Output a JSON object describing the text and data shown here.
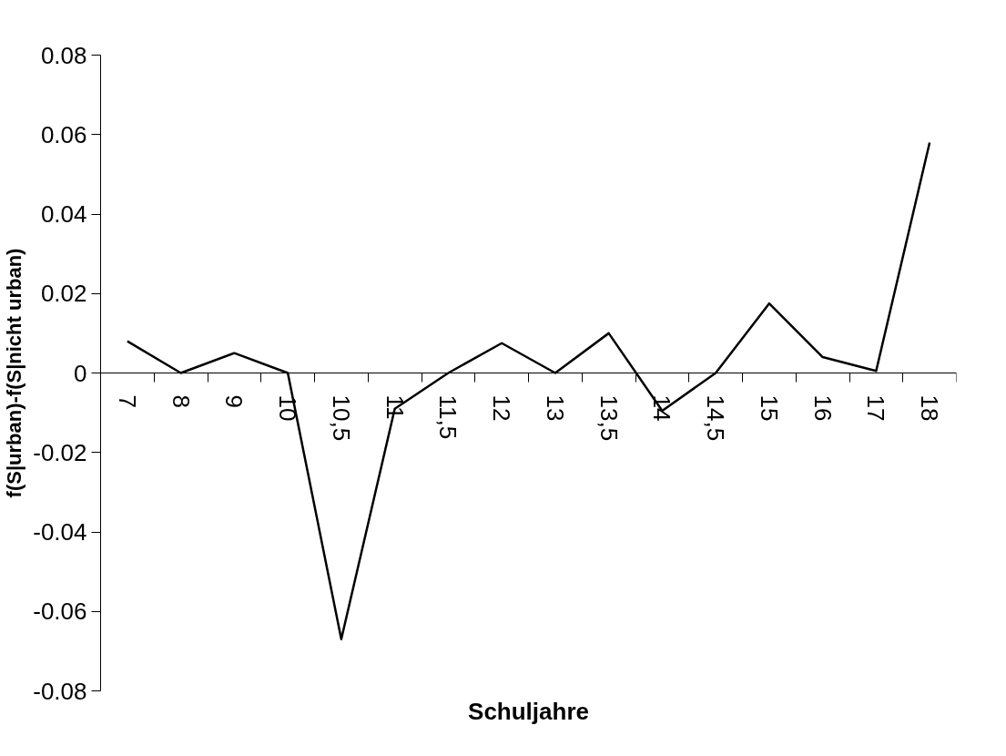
{
  "chart_data": {
    "type": "line",
    "xlabel": "Schuljahre",
    "ylabel": "f(S|urban)-f(S|nicht urban)",
    "categories": [
      "7",
      "8",
      "9",
      "10",
      "10,5",
      "11",
      "11,5",
      "12",
      "13",
      "13,5",
      "14",
      "14,5",
      "15",
      "16",
      "17",
      "18"
    ],
    "series": [
      {
        "color": "#000000",
        "values": [
          0.008,
          0,
          0.005,
          0,
          -0.067,
          -0.009,
          0,
          0.0075,
          0,
          0.01,
          -0.0095,
          0,
          0.0175,
          0.004,
          0.0005,
          0.058
        ]
      }
    ],
    "ylim": [
      -0.08,
      0.08
    ],
    "yticks": [
      -0.08,
      -0.06,
      -0.04,
      -0.02,
      0,
      0.02,
      0.04,
      0.06,
      0.08
    ],
    "grid": false,
    "marker": "none",
    "line_style": "solid"
  }
}
